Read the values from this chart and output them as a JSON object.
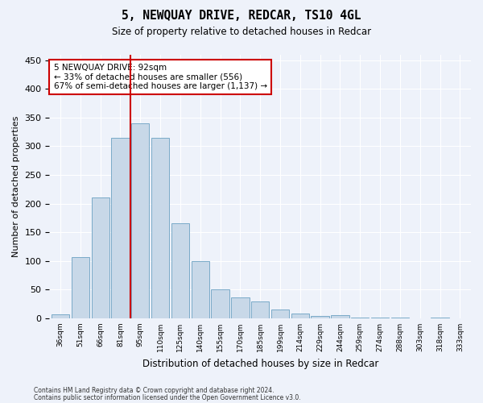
{
  "title": "5, NEWQUAY DRIVE, REDCAR, TS10 4GL",
  "subtitle": "Size of property relative to detached houses in Redcar",
  "xlabel": "Distribution of detached houses by size in Redcar",
  "ylabel": "Number of detached properties",
  "categories": [
    "36sqm",
    "51sqm",
    "66sqm",
    "81sqm",
    "95sqm",
    "110sqm",
    "125sqm",
    "140sqm",
    "155sqm",
    "170sqm",
    "185sqm",
    "199sqm",
    "214sqm",
    "229sqm",
    "244sqm",
    "259sqm",
    "274sqm",
    "288sqm",
    "303sqm",
    "318sqm",
    "333sqm"
  ],
  "values": [
    7,
    106,
    210,
    315,
    340,
    315,
    165,
    100,
    50,
    36,
    29,
    16,
    9,
    4,
    5,
    2,
    1,
    1,
    0,
    1,
    0
  ],
  "bar_color": "#c8d8e8",
  "bar_edge_color": "#7aaac8",
  "vline_pos": 3.5,
  "vline_color": "#cc0000",
  "annotation_text": "5 NEWQUAY DRIVE: 92sqm\n← 33% of detached houses are smaller (556)\n67% of semi-detached houses are larger (1,137) →",
  "annotation_box_color": "#ffffff",
  "annotation_box_edge": "#cc0000",
  "ylim": [
    0,
    460
  ],
  "yticks": [
    0,
    50,
    100,
    150,
    200,
    250,
    300,
    350,
    400,
    450
  ],
  "background_color": "#eef2fa",
  "grid_color": "#ffffff",
  "footer1": "Contains HM Land Registry data © Crown copyright and database right 2024.",
  "footer2": "Contains public sector information licensed under the Open Government Licence v3.0."
}
